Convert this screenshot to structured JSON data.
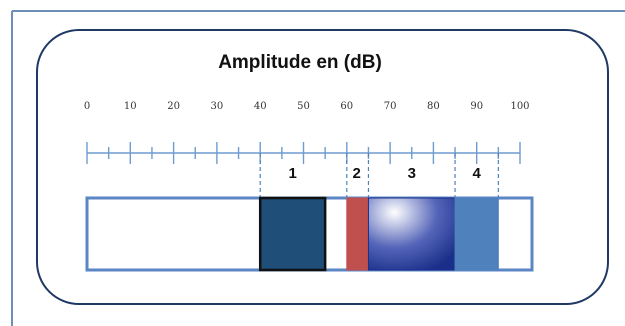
{
  "title": "Amplitude en (dB)",
  "scale": {
    "min": 0,
    "max": 100,
    "labels": [
      "0",
      "10",
      "20",
      "30",
      "40",
      "50",
      "60",
      "70",
      "80",
      "90",
      "100"
    ]
  },
  "zones": [
    {
      "label": "1",
      "start_db": 40,
      "end_db": 55,
      "fill": "#1f4e79",
      "border": "#111111"
    },
    {
      "label": "2",
      "start_db": 60,
      "end_db": 65,
      "fill": "#c0504d",
      "border": "#c0504d"
    },
    {
      "label": "3",
      "start_db": 65,
      "end_db": 85,
      "fill": "#1a2f8a",
      "border": "#1a2f8a"
    },
    {
      "label": "4",
      "start_db": 85,
      "end_db": 95,
      "fill": "#4f81bd",
      "border": "#4f81bd"
    }
  ],
  "colors": {
    "frame_border": "#6e8fb5",
    "panel_border": "#1f3864",
    "bar_border": "#5b86c4",
    "axis": "#6e9bd0",
    "dashed": "#4f81bd"
  }
}
